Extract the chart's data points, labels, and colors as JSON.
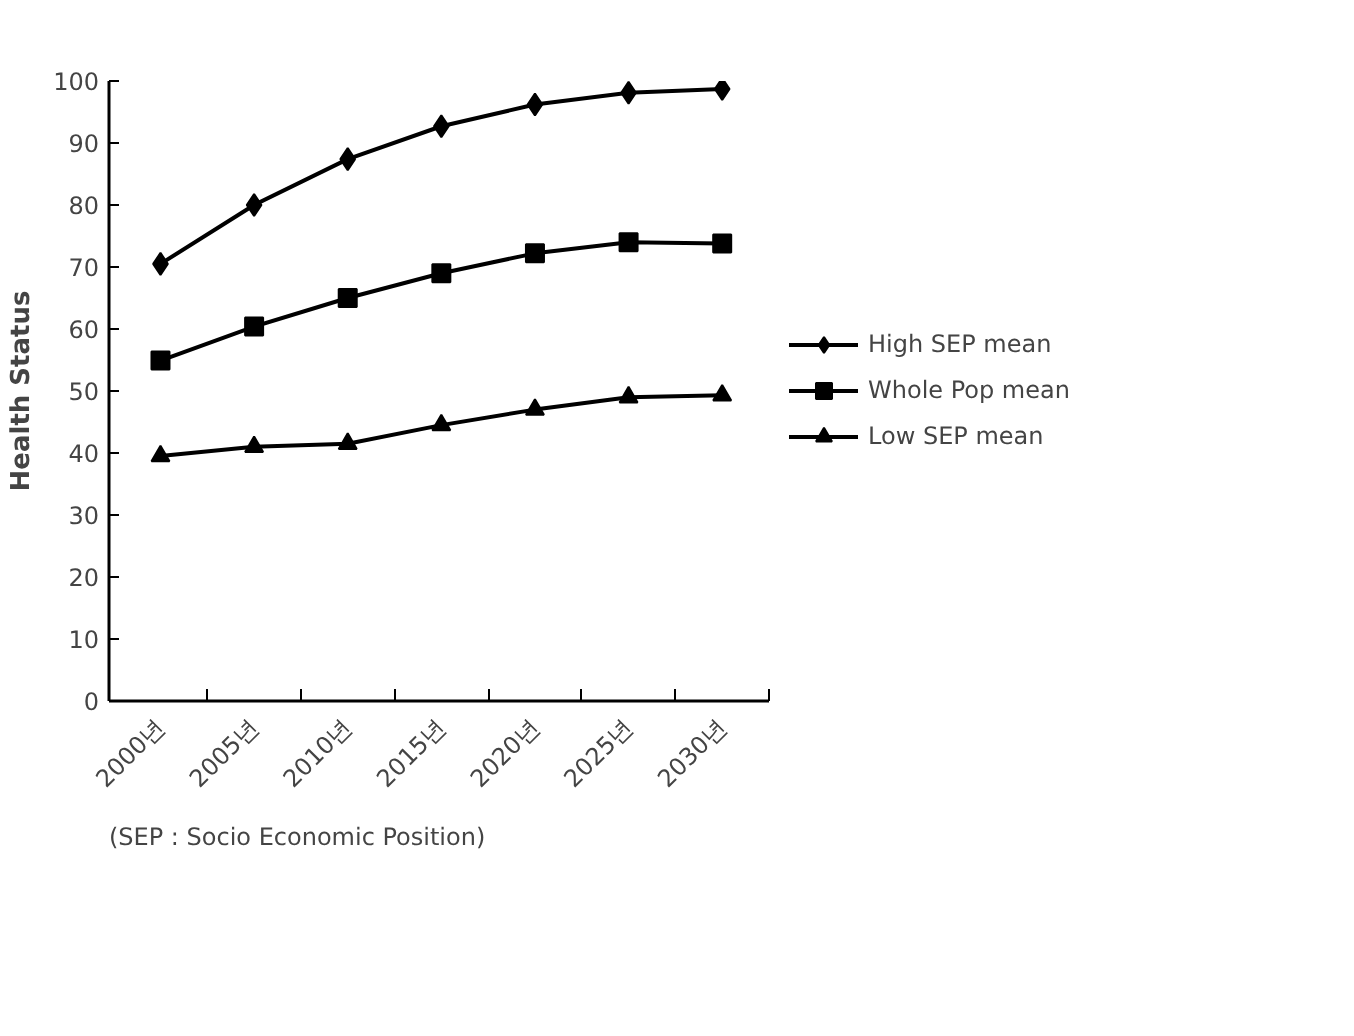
{
  "chart_data": {
    "type": "line",
    "ylabel": "Health Status",
    "categories": [
      "2000년",
      "2005년",
      "2010년",
      "2015년",
      "2020년",
      "2025년",
      "2030년"
    ],
    "series": [
      {
        "name": "High SEP mean",
        "color": "#000000",
        "marker": "diamond",
        "values": [
          70.5,
          80,
          87.4,
          92.7,
          96.2,
          98.1,
          98.7
        ]
      },
      {
        "name": "Whole Pop mean",
        "color": "#000000",
        "marker": "square",
        "values": [
          54.9,
          60.4,
          65,
          69,
          72.2,
          74,
          73.8
        ]
      },
      {
        "name": "Low SEP mean",
        "color": "#000000",
        "marker": "triangle",
        "values": [
          39.5,
          41,
          41.5,
          44.5,
          47,
          49,
          49.3
        ]
      }
    ],
    "ylim": [
      0,
      100
    ],
    "yticks": [
      0,
      10,
      20,
      30,
      40,
      50,
      60,
      70,
      80,
      90,
      100
    ],
    "grid": false,
    "legend": "right",
    "line_style": "solid",
    "annotations": [
      "(SEP : Socio Economic Position)"
    ]
  }
}
